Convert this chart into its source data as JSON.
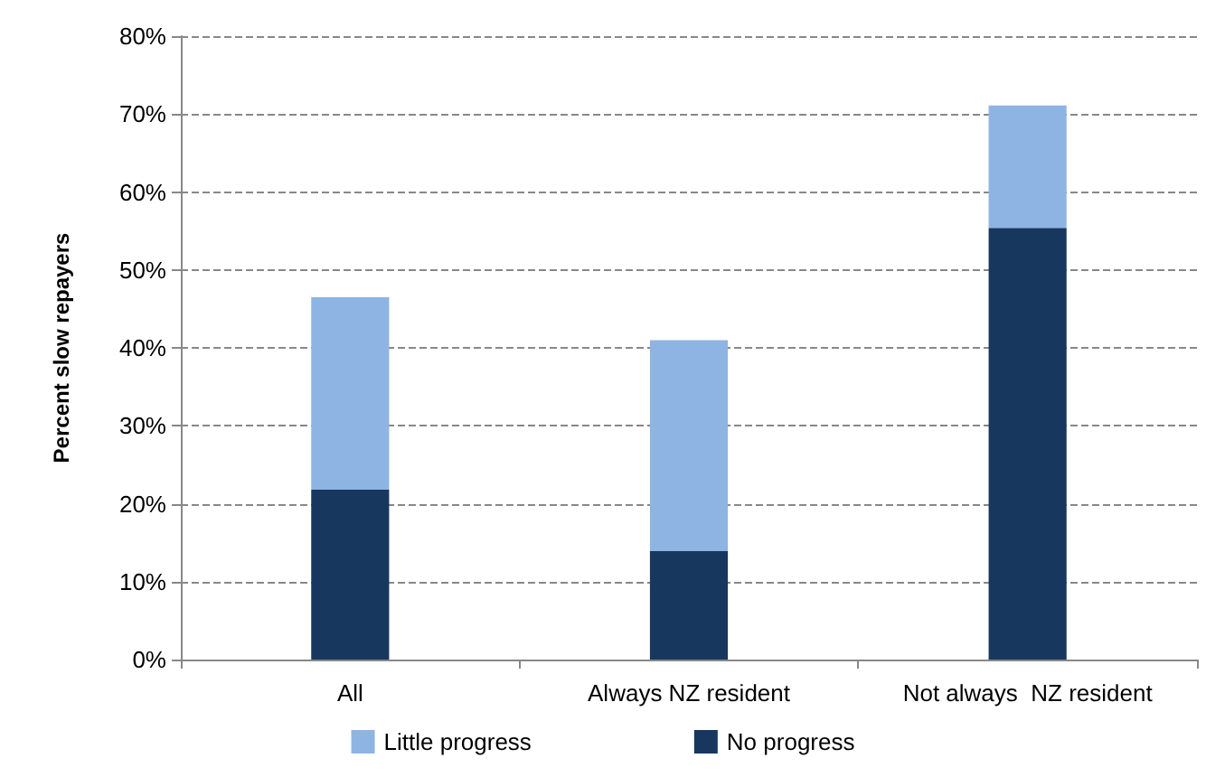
{
  "chart_data": {
    "type": "bar",
    "ylabel": "Percent slow repayers",
    "categories": [
      "All",
      "Always NZ resident",
      "Not always  NZ resident"
    ],
    "stacked": true,
    "series": [
      {
        "name": "No progress",
        "color": "#17375e",
        "values": [
          21.8,
          13.9,
          55.4
        ]
      },
      {
        "name": "Little progress",
        "color": "#8eb4e3",
        "values": [
          24.7,
          27.1,
          15.7
        ]
      }
    ],
    "ylim": [
      0,
      80
    ],
    "yticks": [
      {
        "value": 0,
        "label": "0%"
      },
      {
        "value": 10,
        "label": "10%"
      },
      {
        "value": 20,
        "label": "20%"
      },
      {
        "value": 30,
        "label": "30%"
      },
      {
        "value": 40,
        "label": "40%"
      },
      {
        "value": 50,
        "label": "50%"
      },
      {
        "value": 60,
        "label": "60%"
      },
      {
        "value": 70,
        "label": "70%"
      },
      {
        "value": 80,
        "label": "80%"
      }
    ],
    "grid": "y",
    "legend": "bottom"
  }
}
